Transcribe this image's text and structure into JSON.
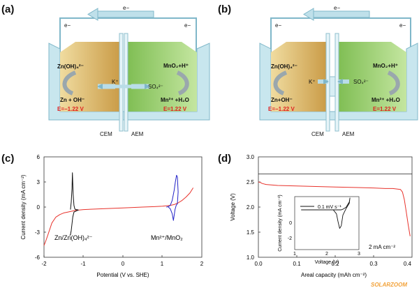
{
  "panels": {
    "a": {
      "label": "(a)",
      "electron_top": "e−",
      "electron_left": "e−",
      "electron_right": "e−",
      "left_top": "Zn(OH)₄²⁻",
      "left_bottom": "Zn + OH⁻",
      "left_potential": "E=−1.22 V",
      "center_left_ion": "K⁺",
      "center_right_ion": "SO₄²⁻",
      "right_top": "MnO₂+H⁺",
      "right_bottom": "Mn²⁺ +H₂O",
      "right_potential": "E=1.22 V",
      "membrane_left": "CEM",
      "membrane_right": "AEM"
    },
    "b": {
      "label": "(b)",
      "electron_top": "e−",
      "electron_left": "e−",
      "electron_right": "e−",
      "left_top": "Zn(OH)₄²⁻",
      "left_bottom": "Zn+OH⁻",
      "left_potential": "E=−1.22 V",
      "center_left_ion": "K⁺",
      "center_right_ion": "SO₄²⁻",
      "right_top": "MnO₂+H⁺",
      "right_bottom": "Mn²⁺ +H₂O",
      "right_potential": "E=1.22 V",
      "membrane_left": "CEM",
      "membrane_right": "AEM"
    },
    "c": {
      "label": "(c)",
      "ylabel": "Current density  (mA cm⁻²)",
      "xlabel": "Potential (V vs. SHE)",
      "xticks": [
        "-2",
        "-1",
        "0",
        "1",
        "2"
      ],
      "yticks": [
        "6",
        "3",
        "0",
        "-3",
        "-6"
      ],
      "annot_left": "Zn/Zn(OH)₄²⁻",
      "annot_right": "Mn²⁺/MnO₂"
    },
    "d": {
      "label": "(d)",
      "ylabel": "Voltage (V)",
      "xlabel": "Areal capacity  (mAh cm⁻²)",
      "xticks": [
        "0.0",
        "0.1",
        "0.2",
        "0.3",
        "0.4"
      ],
      "yticks": [
        "3.0",
        "2.5",
        "2.0",
        "1.5",
        "1.0"
      ],
      "rate": "2 mA cm⁻²",
      "inset": {
        "legend": "0.1 mV s⁻¹",
        "ylabel": "Current density  (mA cm⁻²)",
        "xlabel": "Voltage (V)",
        "xticks": [
          "1",
          "2",
          "3"
        ],
        "yticks": [
          "0",
          "-2"
        ]
      }
    }
  },
  "watermark": "SOLARZOOM",
  "colors": {
    "zinc_cell": "#d9b86a",
    "mn_cell": "#9fd07a",
    "vessel": "#a9d6e0",
    "potential_red": "#e02020",
    "red_curve": "#e8322b",
    "black_curve": "#111111",
    "blue_curve": "#2323c8"
  },
  "chart_data": [
    {
      "panel": "c",
      "type": "line",
      "xlabel": "Potential (V vs. SHE)",
      "ylabel": "Current density  (mA cm⁻²)",
      "xlim": [
        -2,
        2
      ],
      "ylim": [
        -6,
        6
      ],
      "series": [
        {
          "color": "#e8322b",
          "x": [
            -2.0,
            -1.95,
            -1.9,
            -1.85,
            -1.8,
            -1.7,
            -1.6,
            -1.5,
            -1.4,
            -1.3,
            -1.2,
            -1.0,
            -0.5,
            0.0,
            0.5,
            0.8,
            1.0,
            1.2,
            1.3,
            1.4,
            1.5,
            1.6,
            1.7,
            1.78
          ],
          "y": [
            -4.6,
            -4.0,
            -3.3,
            -2.6,
            -1.9,
            -1.2,
            -0.9,
            -0.7,
            -0.6,
            -0.5,
            -0.4,
            -0.3,
            -0.2,
            -0.1,
            0.0,
            0.05,
            0.1,
            0.2,
            0.3,
            0.5,
            0.8,
            1.2,
            1.7,
            2.3
          ]
        },
        {
          "color": "#111111",
          "x": [
            -1.33,
            -1.31,
            -1.29,
            -1.28,
            -1.26,
            -1.24,
            -1.22,
            -1.2,
            -1.17,
            -1.13,
            -1.15,
            -1.2,
            -1.24,
            -1.27,
            -1.29,
            -1.31,
            -1.33,
            -1.35
          ],
          "y": [
            -0.3,
            0.6,
            2.2,
            4.1,
            1.5,
            0.2,
            -0.2,
            -0.3,
            -0.3,
            -0.35,
            -0.4,
            -0.5,
            -0.6,
            -1.2,
            -2.0,
            -2.8,
            -3.3,
            -3.4
          ]
        },
        {
          "color": "#2323c8",
          "x": [
            1.1,
            1.15,
            1.2,
            1.25,
            1.3,
            1.33,
            1.36,
            1.38,
            1.4,
            1.38,
            1.35,
            1.32,
            1.3,
            1.28,
            1.25,
            1.2,
            1.15
          ],
          "y": [
            0.0,
            0.05,
            0.2,
            0.8,
            2.0,
            3.0,
            3.8,
            3.6,
            1.8,
            0.4,
            0.2,
            -0.3,
            -1.0,
            -1.6,
            -0.8,
            -0.2,
            0.0
          ]
        }
      ]
    },
    {
      "panel": "d",
      "type": "line",
      "xlabel": "Areal capacity  (mAh cm⁻²)",
      "ylabel": "Voltage (V)",
      "xlim": [
        0,
        0.4
      ],
      "ylim": [
        1.0,
        3.0
      ],
      "reference_line": 2.66,
      "series": [
        {
          "color": "#e8322b",
          "x": [
            0.0,
            0.005,
            0.01,
            0.02,
            0.05,
            0.1,
            0.15,
            0.2,
            0.25,
            0.3,
            0.33,
            0.35,
            0.37,
            0.375,
            0.38,
            0.385,
            0.39,
            0.395
          ],
          "y": [
            2.5,
            2.49,
            2.47,
            2.45,
            2.43,
            2.42,
            2.41,
            2.4,
            2.39,
            2.38,
            2.37,
            2.37,
            2.35,
            2.3,
            2.15,
            1.9,
            1.65,
            1.42
          ]
        }
      ]
    },
    {
      "panel": "d-inset",
      "type": "line",
      "xlabel": "Voltage (V)",
      "ylabel": "Current density  (mA cm⁻²)",
      "xlim": [
        1,
        3
      ],
      "ylim": [
        -3,
        1
      ],
      "series": [
        {
          "name": "0.1 mV s⁻¹",
          "color": "#111111",
          "x": [
            1.2,
            1.6,
            2.0,
            2.2,
            2.3,
            2.35,
            2.4,
            2.45,
            2.5,
            2.6,
            2.7,
            2.72,
            2.7,
            2.6,
            2.5,
            2.45,
            2.4,
            2.3,
            2.0,
            1.6,
            1.2
          ],
          "y": [
            0.0,
            0.0,
            0.0,
            0.0,
            -0.3,
            -0.9,
            -1.4,
            -1.2,
            -0.4,
            0.1,
            0.5,
            0.9,
            0.6,
            0.2,
            0.05,
            0.0,
            0.0,
            0.0,
            0.0,
            0.0,
            0.0
          ]
        }
      ]
    }
  ]
}
